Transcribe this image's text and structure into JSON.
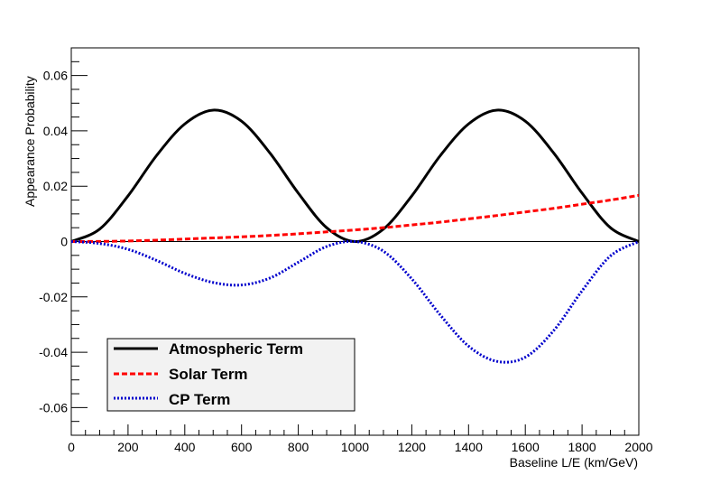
{
  "chart_data": {
    "type": "line",
    "title": "",
    "xlabel": "Baseline L/E (km/GeV)",
    "ylabel": "Appearance Probability",
    "xlim": [
      0,
      2000
    ],
    "ylim": [
      -0.07,
      0.07
    ],
    "x_ticks": [
      0,
      200,
      400,
      600,
      800,
      1000,
      1200,
      1400,
      1600,
      1800,
      2000
    ],
    "x_tick_labels": [
      "0",
      "200",
      "400",
      "600",
      "800",
      "1000",
      "1200",
      "1400",
      "1600",
      "1800",
      "2000"
    ],
    "y_ticks": [
      -0.06,
      -0.04,
      -0.02,
      0,
      0.02,
      0.04,
      0.06
    ],
    "y_tick_labels": [
      "-0.06",
      "-0.04",
      "-0.02",
      "0",
      "0.02",
      "0.04",
      "0.06"
    ],
    "zero_line": true,
    "legend_position": "bottom-left",
    "x": [
      0,
      100,
      200,
      300,
      400,
      500,
      600,
      700,
      800,
      900,
      1000,
      1100,
      1200,
      1300,
      1400,
      1500,
      1600,
      1700,
      1800,
      1900,
      2000
    ],
    "series": [
      {
        "name": "Atmospheric Term",
        "color": "#000000",
        "style": "solid",
        "values": [
          0,
          0.0045,
          0.0165,
          0.031,
          0.0425,
          0.0475,
          0.0435,
          0.032,
          0.0175,
          0.005,
          0.0,
          0.0045,
          0.0165,
          0.031,
          0.0425,
          0.0475,
          0.0435,
          0.032,
          0.0175,
          0.005,
          0.0
        ]
      },
      {
        "name": "Solar Term",
        "color": "#ff0000",
        "style": "dashed",
        "values": [
          0,
          5e-05,
          0.0002,
          0.0005,
          0.0009,
          0.0013,
          0.0017,
          0.0022,
          0.0028,
          0.0035,
          0.0042,
          0.005,
          0.006,
          0.007,
          0.0082,
          0.0094,
          0.0107,
          0.012,
          0.0135,
          0.015,
          0.0167
        ]
      },
      {
        "name": "CP Term",
        "color": "#0000cc",
        "style": "dotted",
        "values": [
          0,
          -0.0007,
          -0.0028,
          -0.0068,
          -0.0115,
          -0.0148,
          -0.0157,
          -0.0132,
          -0.0075,
          -0.0018,
          0.0,
          -0.0035,
          -0.0135,
          -0.0265,
          -0.0378,
          -0.0433,
          -0.0418,
          -0.0322,
          -0.0178,
          -0.0052,
          0.0
        ]
      }
    ]
  }
}
